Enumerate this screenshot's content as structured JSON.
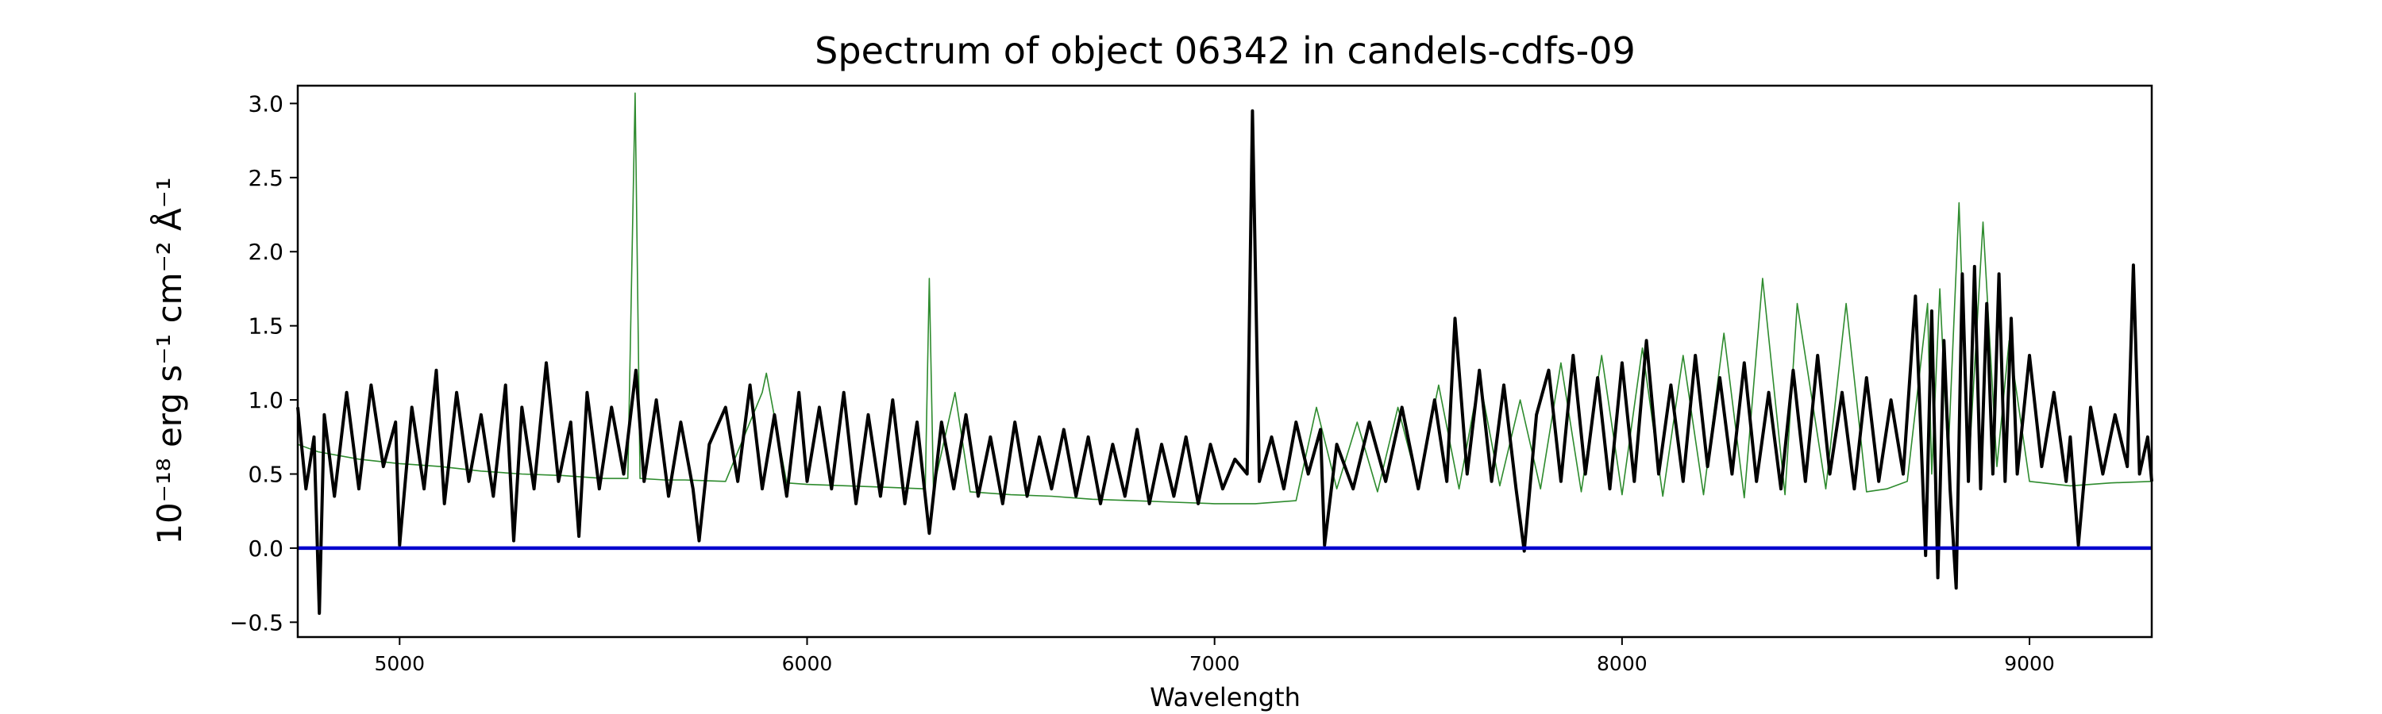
{
  "chart_data": {
    "type": "line",
    "title": "Spectrum of object 06342 in candels-cdfs-09",
    "xlabel": "Wavelength",
    "ylabel": "10⁻¹⁸ erg s⁻¹ cm⁻² Å⁻¹",
    "xlim": [
      4750,
      9300
    ],
    "ylim": [
      -0.6,
      3.12
    ],
    "x_ticks": [
      5000,
      6000,
      7000,
      8000,
      9000
    ],
    "x_tick_labels": [
      "5000",
      "6000",
      "7000",
      "8000",
      "9000"
    ],
    "y_ticks": [
      -0.5,
      0.0,
      0.5,
      1.0,
      1.5,
      2.0,
      2.5,
      3.0
    ],
    "y_tick_labels": [
      "−0.5",
      "0.0",
      "0.5",
      "1.0",
      "1.5",
      "2.0",
      "2.5",
      "3.0"
    ],
    "grid": false,
    "series": [
      {
        "color": "#2e8b2e",
        "style": "thin",
        "x": [
          4750,
          4800,
          4900,
          5000,
          5100,
          5200,
          5300,
          5400,
          5500,
          5560,
          5578,
          5590,
          5650,
          5700,
          5800,
          5890,
          5900,
          5950,
          6000,
          6100,
          6200,
          6290,
          6300,
          6310,
          6363,
          6400,
          6500,
          6600,
          6700,
          6800,
          6900,
          7000,
          7100,
          7200,
          7250,
          7300,
          7350,
          7400,
          7450,
          7500,
          7550,
          7600,
          7650,
          7700,
          7750,
          7800,
          7850,
          7900,
          7950,
          8000,
          8050,
          8100,
          8150,
          8200,
          8250,
          8300,
          8345,
          8400,
          8430,
          8500,
          8550,
          8600,
          8650,
          8700,
          8750,
          8760,
          8780,
          8800,
          8827,
          8850,
          8886,
          8920,
          8950,
          9000,
          9100,
          9200,
          9300
        ],
        "y": [
          0.7,
          0.65,
          0.6,
          0.57,
          0.55,
          0.52,
          0.5,
          0.49,
          0.47,
          0.47,
          3.07,
          0.47,
          0.46,
          0.46,
          0.45,
          1.05,
          1.18,
          0.44,
          0.43,
          0.42,
          0.41,
          0.4,
          1.82,
          0.4,
          1.05,
          0.38,
          0.36,
          0.35,
          0.33,
          0.32,
          0.31,
          0.3,
          0.3,
          0.32,
          0.95,
          0.4,
          0.85,
          0.38,
          0.95,
          0.42,
          1.1,
          0.4,
          1.15,
          0.42,
          1.0,
          0.4,
          1.25,
          0.38,
          1.3,
          0.36,
          1.35,
          0.35,
          1.3,
          0.36,
          1.45,
          0.34,
          1.82,
          0.36,
          1.65,
          0.4,
          1.65,
          0.38,
          0.4,
          0.45,
          1.65,
          0.5,
          1.75,
          0.6,
          2.33,
          0.5,
          2.2,
          0.55,
          1.4,
          0.45,
          0.42,
          0.44,
          0.45
        ]
      },
      {
        "color": "#000000",
        "style": "thick",
        "x": [
          4750,
          4770,
          4790,
          4803,
          4815,
          4840,
          4870,
          4900,
          4930,
          4960,
          4990,
          5000,
          5030,
          5060,
          5090,
          5110,
          5140,
          5170,
          5200,
          5230,
          5260,
          5280,
          5300,
          5330,
          5360,
          5390,
          5420,
          5440,
          5460,
          5490,
          5520,
          5550,
          5580,
          5600,
          5630,
          5660,
          5690,
          5720,
          5735,
          5760,
          5800,
          5830,
          5860,
          5890,
          5920,
          5950,
          5980,
          6000,
          6030,
          6060,
          6090,
          6120,
          6150,
          6180,
          6210,
          6240,
          6270,
          6300,
          6330,
          6360,
          6390,
          6420,
          6450,
          6480,
          6510,
          6540,
          6570,
          6600,
          6630,
          6660,
          6690,
          6720,
          6750,
          6780,
          6810,
          6840,
          6870,
          6900,
          6930,
          6960,
          6990,
          7020,
          7050,
          7080,
          7093,
          7110,
          7140,
          7170,
          7200,
          7230,
          7260,
          7270,
          7300,
          7340,
          7380,
          7420,
          7460,
          7500,
          7540,
          7570,
          7590,
          7620,
          7650,
          7680,
          7710,
          7740,
          7760,
          7790,
          7820,
          7850,
          7880,
          7910,
          7940,
          7970,
          8000,
          8030,
          8060,
          8090,
          8120,
          8150,
          8180,
          8210,
          8240,
          8270,
          8300,
          8330,
          8360,
          8390,
          8420,
          8450,
          8480,
          8510,
          8540,
          8570,
          8600,
          8630,
          8660,
          8690,
          8720,
          8745,
          8760,
          8775,
          8790,
          8805,
          8820,
          8835,
          8850,
          8865,
          8880,
          8895,
          8910,
          8925,
          8940,
          8955,
          8970,
          9000,
          9030,
          9060,
          9090,
          9100,
          9120,
          9150,
          9180,
          9210,
          9240,
          9255,
          9270,
          9290,
          9300
        ],
        "y": [
          0.95,
          0.4,
          0.75,
          -0.44,
          0.9,
          0.35,
          1.05,
          0.4,
          1.1,
          0.55,
          0.85,
          0.02,
          0.95,
          0.4,
          1.2,
          0.3,
          1.05,
          0.45,
          0.9,
          0.35,
          1.1,
          0.05,
          0.95,
          0.4,
          1.25,
          0.45,
          0.85,
          0.08,
          1.05,
          0.4,
          0.95,
          0.5,
          1.2,
          0.45,
          1.0,
          0.35,
          0.85,
          0.4,
          0.05,
          0.7,
          0.95,
          0.45,
          1.1,
          0.4,
          0.9,
          0.35,
          1.05,
          0.45,
          0.95,
          0.4,
          1.05,
          0.3,
          0.9,
          0.35,
          1.0,
          0.3,
          0.85,
          0.1,
          0.85,
          0.4,
          0.9,
          0.35,
          0.75,
          0.3,
          0.85,
          0.35,
          0.75,
          0.4,
          0.8,
          0.35,
          0.75,
          0.3,
          0.7,
          0.35,
          0.8,
          0.3,
          0.7,
          0.35,
          0.75,
          0.3,
          0.7,
          0.4,
          0.6,
          0.5,
          2.95,
          0.45,
          0.75,
          0.4,
          0.85,
          0.5,
          0.8,
          0.02,
          0.7,
          0.4,
          0.85,
          0.45,
          0.95,
          0.4,
          1.0,
          0.45,
          1.55,
          0.5,
          1.2,
          0.45,
          1.1,
          0.4,
          -0.02,
          0.9,
          1.2,
          0.45,
          1.3,
          0.5,
          1.15,
          0.4,
          1.25,
          0.45,
          1.4,
          0.5,
          1.1,
          0.45,
          1.3,
          0.55,
          1.15,
          0.5,
          1.25,
          0.45,
          1.05,
          0.4,
          1.2,
          0.45,
          1.3,
          0.5,
          1.05,
          0.4,
          1.15,
          0.45,
          1.0,
          0.5,
          1.7,
          -0.05,
          1.6,
          -0.2,
          1.4,
          0.4,
          -0.27,
          1.85,
          0.45,
          1.9,
          0.4,
          1.65,
          0.5,
          1.85,
          0.45,
          1.55,
          0.5,
          1.3,
          0.55,
          1.05,
          0.45,
          0.75,
          0.02,
          0.95,
          0.5,
          0.9,
          0.55,
          1.91,
          0.5,
          0.75,
          0.45
        ]
      },
      {
        "color": "#0000cd",
        "style": "zero",
        "x": [
          4750,
          9300
        ],
        "y": [
          0.0,
          0.0
        ]
      }
    ]
  }
}
